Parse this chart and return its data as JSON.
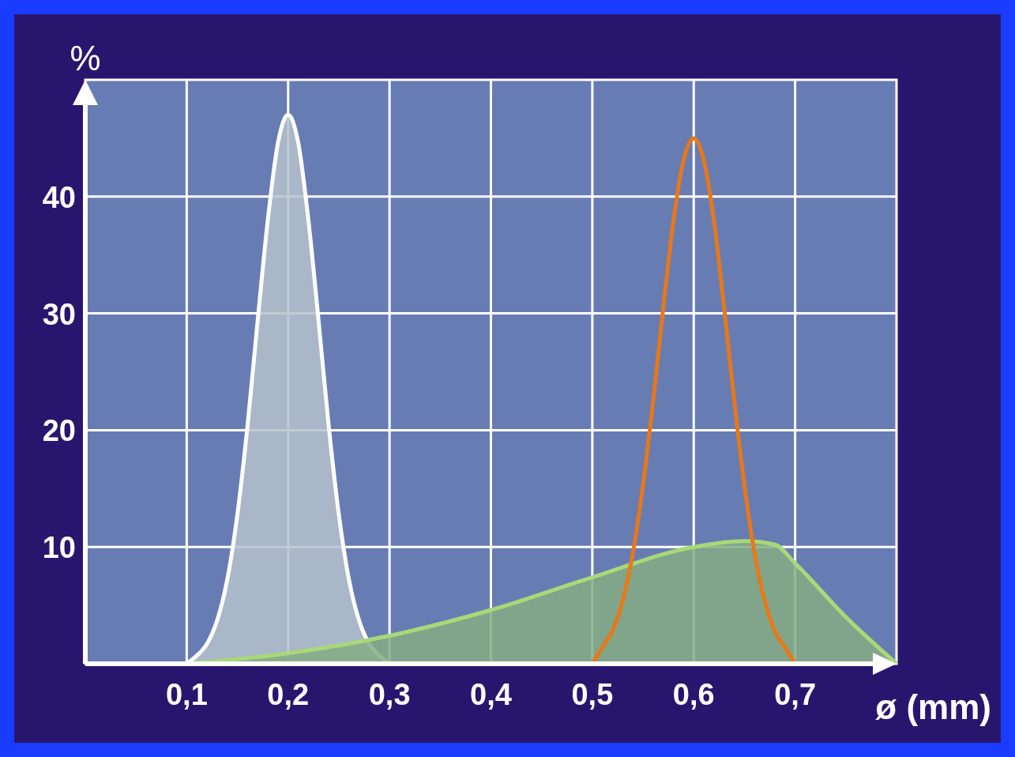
{
  "chart_data": {
    "type": "line",
    "xlabel": "ø (mm)",
    "ylabel": "%",
    "xlim": [
      0,
      0.8
    ],
    "ylim": [
      0,
      50
    ],
    "xticks": [
      {
        "value": 0.1,
        "label": "0,1"
      },
      {
        "value": 0.2,
        "label": "0,2"
      },
      {
        "value": 0.3,
        "label": "0,3"
      },
      {
        "value": 0.4,
        "label": "0,4"
      },
      {
        "value": 0.5,
        "label": "0,5"
      },
      {
        "value": 0.6,
        "label": "0,6"
      },
      {
        "value": 0.7,
        "label": "0,7"
      }
    ],
    "yticks": [
      10,
      20,
      30,
      40
    ],
    "grid": true,
    "series": [
      {
        "type": "area",
        "color": "#ffffff",
        "x": [
          0.1,
          0.11,
          0.12,
          0.13,
          0.14,
          0.15,
          0.16,
          0.17,
          0.18,
          0.19,
          0.2,
          0.21,
          0.22,
          0.23,
          0.24,
          0.25,
          0.26,
          0.27,
          0.28,
          0.29,
          0.3
        ],
        "values": [
          0,
          0.7,
          1.7,
          3.7,
          7.2,
          12.8,
          20.4,
          29.4,
          38,
          44.6,
          47,
          44.6,
          38,
          29.4,
          20.4,
          12.8,
          7.2,
          3.7,
          1.7,
          0.7,
          0
        ]
      },
      {
        "type": "area",
        "color": "#a8d878",
        "x": [
          0.1,
          0.2,
          0.3,
          0.4,
          0.5,
          0.6,
          0.65,
          0.68,
          0.7,
          0.75,
          0.8
        ],
        "values": [
          0,
          0.9,
          2.4,
          4.6,
          7.4,
          10,
          10.5,
          10.2,
          8.6,
          4,
          0
        ]
      },
      {
        "color": "#e87818",
        "x": [
          0.5,
          0.51,
          0.52,
          0.53,
          0.54,
          0.55,
          0.56,
          0.57,
          0.58,
          0.59,
          0.6,
          0.61,
          0.62,
          0.63,
          0.64,
          0.65,
          0.66,
          0.67,
          0.68,
          0.69,
          0.7
        ],
        "values": [
          0,
          1.4,
          2.8,
          5.4,
          9.5,
          15.3,
          22.5,
          30.5,
          37.9,
          43.1,
          45,
          43.1,
          37.9,
          30.5,
          22.5,
          15.3,
          9.5,
          5.4,
          2.8,
          1.4,
          0
        ]
      }
    ]
  }
}
